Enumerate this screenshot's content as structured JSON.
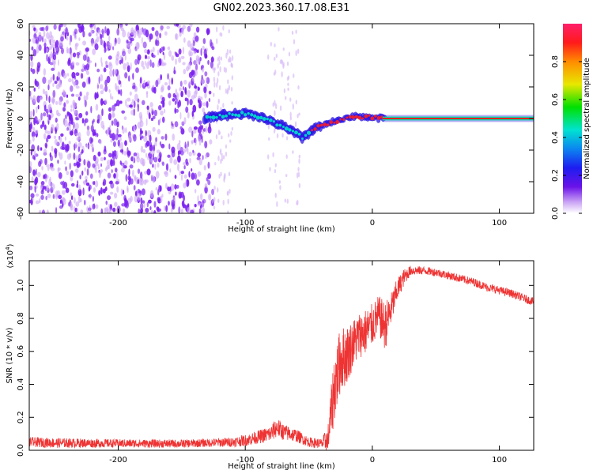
{
  "figure_title": "GN02.2023.360.17.08.E31",
  "colors": {
    "snr_line": "#ee3333",
    "ridge": "#00e5c8",
    "ridge_core": "#ff2020",
    "scatter": "#7a1ff0",
    "axis": "#000000"
  },
  "chart_data": [
    {
      "type": "heatmap",
      "title": "GN02.2023.360.17.08.E31",
      "xlabel": "Height of straight line (km)",
      "ylabel": "Frequency (Hz)",
      "xlim": [
        -270,
        127
      ],
      "ylim": [
        -60,
        60
      ],
      "x_ticks": [
        -200,
        -100,
        0,
        100
      ],
      "x_tick_labels": [
        "-200",
        "-100",
        "0",
        "100"
      ],
      "y_ticks": [
        -60,
        -40,
        -20,
        0,
        20,
        40,
        60
      ],
      "y_tick_labels": [
        "-60",
        "-40",
        "-20",
        "0",
        "20",
        "40",
        "60"
      ],
      "colorbar": {
        "label": "Normalized spectral amplitude",
        "range": [
          0,
          1
        ],
        "ticks": [
          0.0,
          0.2,
          0.4,
          0.6,
          0.8
        ],
        "tick_labels": [
          "0.0",
          "0.2",
          "0.4",
          "0.6",
          "0.8"
        ]
      },
      "ridge": {
        "description_points": [
          {
            "x": -130,
            "y": 1
          },
          {
            "x": -100,
            "y": 3
          },
          {
            "x": -85,
            "y": 0
          },
          {
            "x": -70,
            "y": -5
          },
          {
            "x": -55,
            "y": -12
          },
          {
            "x": -45,
            "y": -6
          },
          {
            "x": -30,
            "y": -2
          },
          {
            "x": -15,
            "y": 1
          },
          {
            "x": 0,
            "y": 1
          },
          {
            "x": 10,
            "y": 0
          },
          {
            "x": 127,
            "y": 0
          }
        ]
      },
      "noise_region_x": [
        -270,
        -125
      ]
    },
    {
      "type": "line",
      "xlabel": "Height of straight line (km)",
      "ylabel": "SNR (10 * v/v)",
      "y_scale_label": "(x10",
      "y_scale_exponent": "4",
      "xlim": [
        -270,
        127
      ],
      "ylim": [
        0,
        11500
      ],
      "x_ticks": [
        -200,
        -100,
        0,
        100
      ],
      "x_tick_labels": [
        "-200",
        "-100",
        "0",
        "100"
      ],
      "y_ticks": [
        0,
        2000,
        4000,
        6000,
        8000,
        10000
      ],
      "y_tick_labels": [
        "0.0",
        "0.2",
        "0.4",
        "0.6",
        "0.8",
        "1.0"
      ],
      "series": [
        {
          "x": [
            -270,
            -250,
            -200,
            -150,
            -130,
            -110,
            -100,
            -90,
            -80,
            -75,
            -70,
            -60,
            -50,
            -40,
            -35,
            -30,
            -25,
            -20,
            -15,
            -10,
            -5,
            0,
            5,
            10,
            15,
            20,
            25,
            30,
            40,
            50,
            60,
            70,
            80,
            90,
            100,
            110,
            120,
            127
          ],
          "values": [
            500,
            450,
            420,
            400,
            450,
            500,
            600,
            800,
            1000,
            1400,
            1100,
            900,
            500,
            400,
            600,
            3800,
            5500,
            5800,
            6500,
            7000,
            7200,
            7600,
            8200,
            7500,
            8600,
            9800,
            10500,
            10900,
            10900,
            10800,
            10600,
            10400,
            10200,
            9900,
            9700,
            9500,
            9200,
            9000
          ],
          "noise_amplitude": [
            300,
            300,
            250,
            250,
            250,
            300,
            350,
            400,
            500,
            600,
            500,
            400,
            300,
            300,
            900,
            2200,
            2000,
            1800,
            1500,
            1400,
            1400,
            1300,
            1200,
            1500,
            1000,
            700,
            500,
            300,
            250,
            250,
            250,
            250,
            250,
            250,
            250,
            250,
            250,
            250
          ]
        }
      ]
    }
  ]
}
